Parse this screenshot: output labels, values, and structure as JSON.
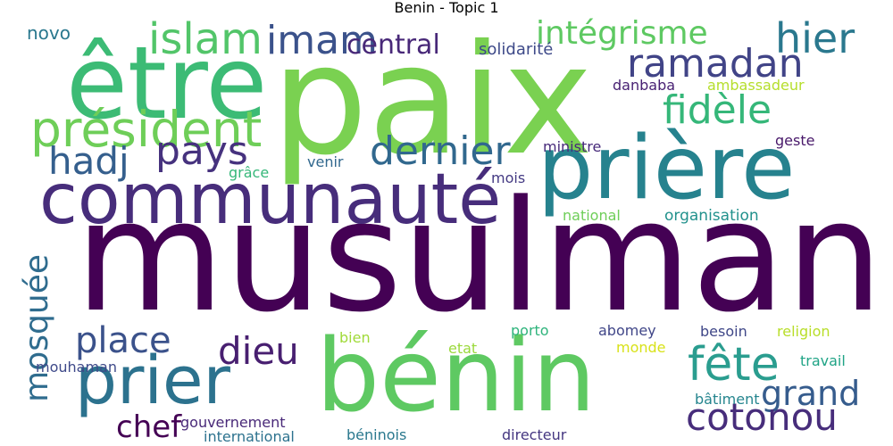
{
  "title": "Benin - Topic 1",
  "words": [
    {
      "text": "musulman",
      "color": "#440154"
    },
    {
      "text": "paix",
      "color": "#7ad151"
    },
    {
      "text": "être",
      "color": "#3cbb75"
    },
    {
      "text": "prière",
      "color": "#26828e"
    },
    {
      "text": "bénin",
      "color": "#5ec962"
    },
    {
      "text": "communauté",
      "color": "#472d7b"
    },
    {
      "text": "prier",
      "color": "#2c728e"
    },
    {
      "text": "président",
      "color": "#6ece58"
    },
    {
      "text": "islam",
      "color": "#52c569"
    },
    {
      "text": "imam",
      "color": "#3b528b"
    },
    {
      "text": "ramadan",
      "color": "#414487"
    },
    {
      "text": "hier",
      "color": "#2a788e"
    },
    {
      "text": "fidèle",
      "color": "#35b779"
    },
    {
      "text": "dernier",
      "color": "#31688e"
    },
    {
      "text": "pays",
      "color": "#46327e"
    },
    {
      "text": "hadj",
      "color": "#355f8d"
    },
    {
      "text": "intégrisme",
      "color": "#5ec962"
    },
    {
      "text": "central",
      "color": "#482878"
    },
    {
      "text": "place",
      "color": "#3b528b"
    },
    {
      "text": "dieu",
      "color": "#481f70"
    },
    {
      "text": "mosquée",
      "color": "#2f6c8e"
    },
    {
      "text": "fête",
      "color": "#2a9d8f"
    },
    {
      "text": "grand",
      "color": "#365c8d"
    },
    {
      "text": "cotonou",
      "color": "#472d7b"
    },
    {
      "text": "chef",
      "color": "#440154"
    },
    {
      "text": "novo",
      "color": "#2a788e"
    },
    {
      "text": "solidarité",
      "color": "#3e4a89"
    },
    {
      "text": "danbaba",
      "color": "#482173"
    },
    {
      "text": "ambassadeur",
      "color": "#b5de2b"
    },
    {
      "text": "ministre",
      "color": "#472a7a"
    },
    {
      "text": "geste",
      "color": "#48186a"
    },
    {
      "text": "grâce",
      "color": "#35b779"
    },
    {
      "text": "venir",
      "color": "#31688e"
    },
    {
      "text": "mois",
      "color": "#443a83"
    },
    {
      "text": "national",
      "color": "#6ece58"
    },
    {
      "text": "organisation",
      "color": "#21918c"
    },
    {
      "text": "abomey",
      "color": "#404688"
    },
    {
      "text": "porto",
      "color": "#2fb47c"
    },
    {
      "text": "besoin",
      "color": "#3f4788"
    },
    {
      "text": "religion",
      "color": "#b8de29"
    },
    {
      "text": "bien",
      "color": "#a0da39"
    },
    {
      "text": "etat",
      "color": "#9bd93c"
    },
    {
      "text": "monde",
      "color": "#d8e219"
    },
    {
      "text": "travail",
      "color": "#20a486"
    },
    {
      "text": "mouhaman",
      "color": "#3e4989"
    },
    {
      "text": "bâtiment",
      "color": "#25858e"
    },
    {
      "text": "gouvernement",
      "color": "#482878"
    },
    {
      "text": "international",
      "color": "#2c728e"
    },
    {
      "text": "béninois",
      "color": "#2a788e"
    },
    {
      "text": "directeur",
      "color": "#453781"
    }
  ]
}
